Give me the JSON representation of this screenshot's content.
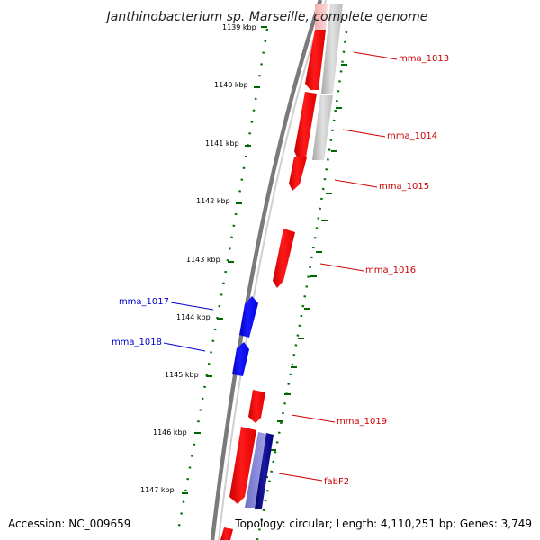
{
  "title": "Janthinobacterium sp. Marseille, complete genome",
  "accession": "Accession: NC_009659",
  "topology": "Topology: circular; Length: 4,110,251 bp; Genes: 3,749",
  "colors": {
    "forward_gene": "#ff0000",
    "reverse_gene": "#0000ff",
    "forward_label": "#cc0000",
    "reverse_label": "#0000cc",
    "backbone": "#777777",
    "ticks": "#006600",
    "other_feature": "#bbbbbb"
  },
  "scale_ticks": [
    {
      "label": "1139 kbp"
    },
    {
      "label": "1140 kbp"
    },
    {
      "label": "1141 kbp"
    },
    {
      "label": "1142 kbp"
    },
    {
      "label": "1143 kbp"
    },
    {
      "label": "1144 kbp"
    },
    {
      "label": "1145 kbp"
    },
    {
      "label": "1146 kbp"
    },
    {
      "label": "1147 kbp"
    }
  ],
  "gene_labels": [
    {
      "name": "mma_1013",
      "strand": "forward"
    },
    {
      "name": "mma_1014",
      "strand": "forward"
    },
    {
      "name": "mma_1015",
      "strand": "forward"
    },
    {
      "name": "mma_1016",
      "strand": "forward"
    },
    {
      "name": "mma_1017",
      "strand": "reverse"
    },
    {
      "name": "mma_1018",
      "strand": "reverse"
    },
    {
      "name": "mma_1019",
      "strand": "forward"
    },
    {
      "name": "fabF2",
      "strand": "forward"
    }
  ]
}
